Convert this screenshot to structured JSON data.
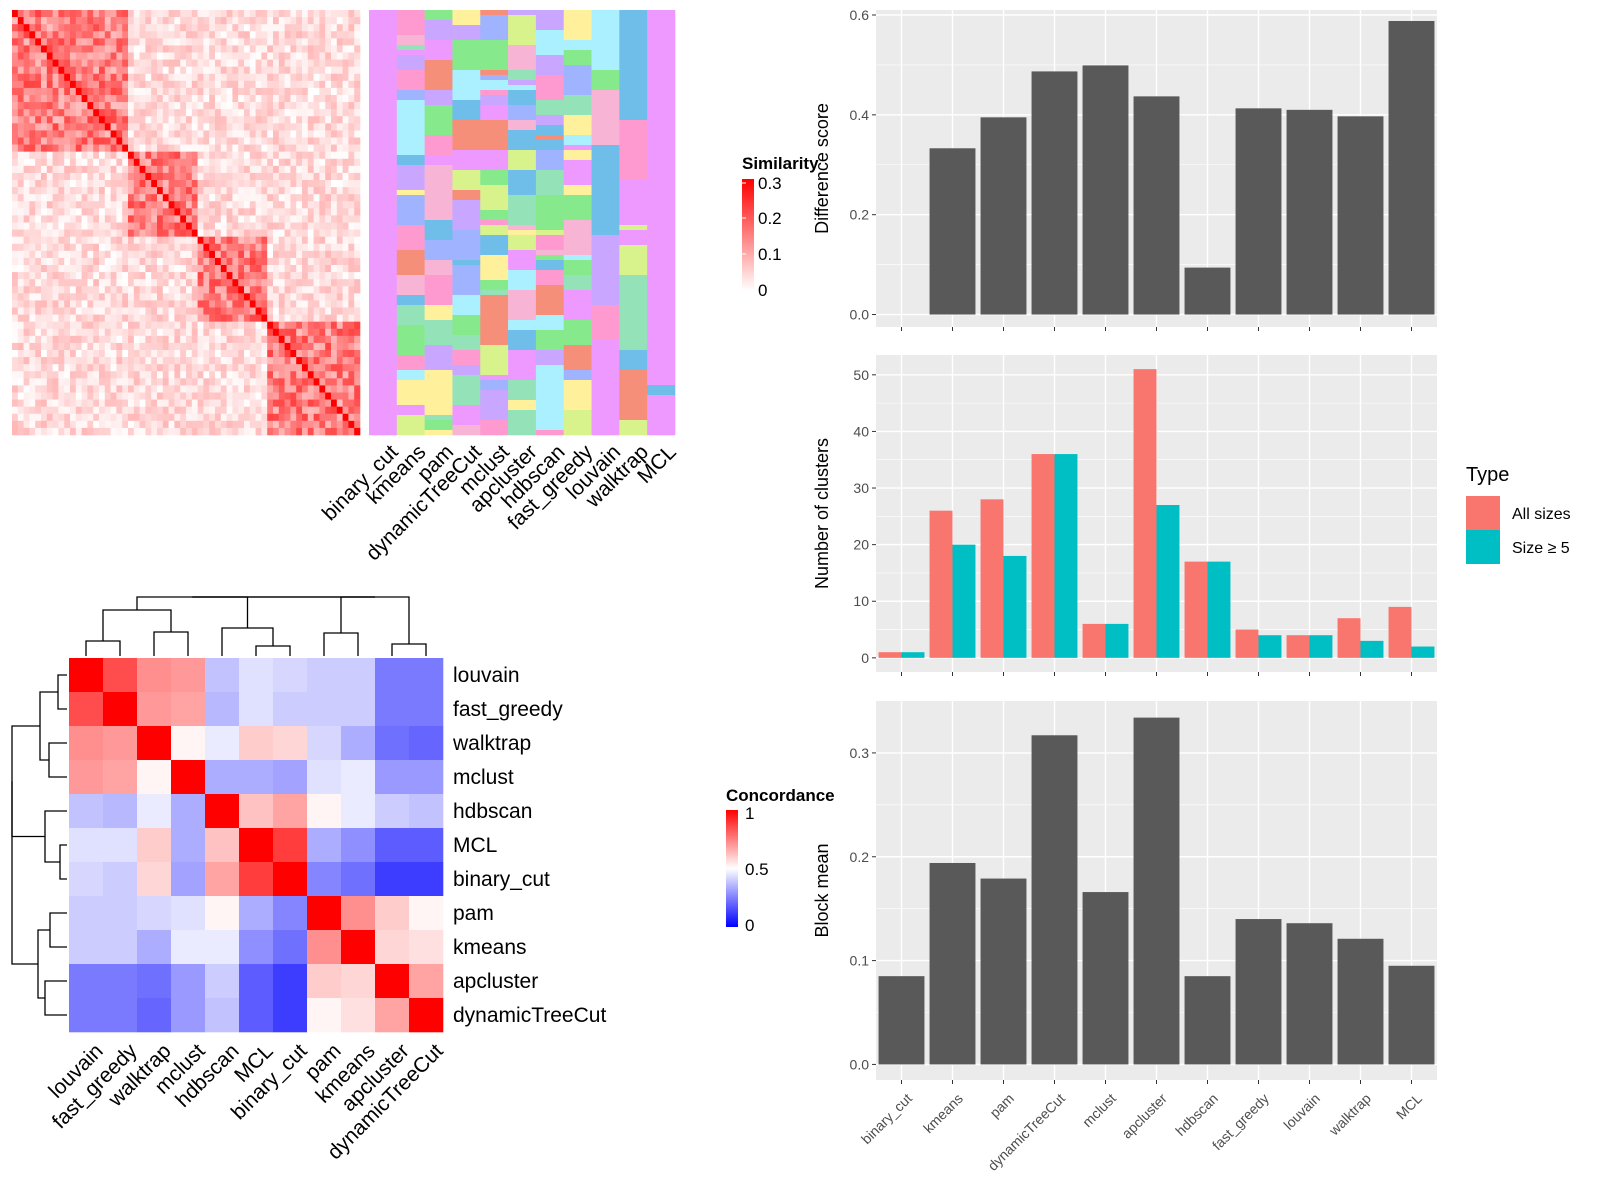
{
  "colors": {
    "bar_dark": "#595959",
    "all_sizes": "#f8766d",
    "size_ge5": "#00bfc4",
    "heat_high": "#ff0000",
    "heat_mid": "#ffffff",
    "heat_low": "#0000ff"
  },
  "methods_bar_order": [
    "binary_cut",
    "kmeans",
    "pam",
    "dynamicTreeCut",
    "mclust",
    "apcluster",
    "hdbscan",
    "fast_greedy",
    "louvain",
    "walktrap",
    "MCL"
  ],
  "top_heatmap": {
    "legend_title": "Similarity",
    "legend_ticks": [
      "0.3",
      "0.2",
      "0.1",
      "0"
    ],
    "method_labels": [
      "binary_cut",
      "kmeans",
      "pam",
      "dynamicTreeCut",
      "mclust",
      "apcluster",
      "hdbscan",
      "fast_greedy",
      "louvain",
      "walktrap",
      "MCL"
    ]
  },
  "concordance": {
    "legend_title": "Concordance",
    "legend_ticks": [
      "1",
      "0.5",
      "0"
    ],
    "order": [
      "louvain",
      "fast_greedy",
      "walktrap",
      "mclust",
      "hdbscan",
      "MCL",
      "binary_cut",
      "pam",
      "kmeans",
      "apcluster",
      "dynamicTreeCut"
    ],
    "matrix": [
      [
        1.0,
        0.85,
        0.72,
        0.7,
        0.38,
        0.44,
        0.42,
        0.4,
        0.4,
        0.24,
        0.24
      ],
      [
        0.85,
        1.0,
        0.7,
        0.68,
        0.36,
        0.44,
        0.4,
        0.4,
        0.4,
        0.24,
        0.24
      ],
      [
        0.72,
        0.7,
        1.0,
        0.52,
        0.46,
        0.6,
        0.58,
        0.42,
        0.34,
        0.22,
        0.2
      ],
      [
        0.7,
        0.68,
        0.52,
        1.0,
        0.34,
        0.34,
        0.32,
        0.44,
        0.46,
        0.3,
        0.3
      ],
      [
        0.38,
        0.36,
        0.46,
        0.34,
        1.0,
        0.62,
        0.68,
        0.52,
        0.46,
        0.4,
        0.38
      ],
      [
        0.44,
        0.44,
        0.6,
        0.34,
        0.62,
        1.0,
        0.88,
        0.34,
        0.28,
        0.18,
        0.18
      ],
      [
        0.42,
        0.4,
        0.58,
        0.32,
        0.68,
        0.88,
        1.0,
        0.26,
        0.22,
        0.12,
        0.12
      ],
      [
        0.4,
        0.4,
        0.42,
        0.44,
        0.52,
        0.34,
        0.26,
        1.0,
        0.72,
        0.6,
        0.52
      ],
      [
        0.4,
        0.4,
        0.34,
        0.46,
        0.46,
        0.28,
        0.22,
        0.72,
        1.0,
        0.58,
        0.56
      ],
      [
        0.24,
        0.24,
        0.22,
        0.3,
        0.4,
        0.18,
        0.12,
        0.6,
        0.58,
        1.0,
        0.68
      ],
      [
        0.24,
        0.24,
        0.2,
        0.3,
        0.38,
        0.18,
        0.12,
        0.52,
        0.56,
        0.68,
        1.0
      ]
    ]
  },
  "chart_data": [
    {
      "type": "bar",
      "categories": [
        "binary_cut",
        "kmeans",
        "pam",
        "dynamicTreeCut",
        "mclust",
        "apcluster",
        "hdbscan",
        "fast_greedy",
        "louvain",
        "walktrap",
        "MCL"
      ],
      "values": [
        0.0,
        0.333,
        0.395,
        0.487,
        0.499,
        0.437,
        0.094,
        0.413,
        0.41,
        0.397,
        0.588
      ],
      "ylabel": "Difference score",
      "ylim": [
        -0.025,
        0.61
      ],
      "yticks": [
        0.0,
        0.2,
        0.4,
        0.6
      ],
      "ytick_labels": [
        "0.0",
        "0.2",
        "0.4",
        "0.6"
      ]
    },
    {
      "type": "bar",
      "categories": [
        "binary_cut",
        "kmeans",
        "pam",
        "dynamicTreeCut",
        "mclust",
        "apcluster",
        "hdbscan",
        "fast_greedy",
        "louvain",
        "walktrap",
        "MCL"
      ],
      "series": [
        {
          "name": "All sizes",
          "values": [
            1,
            26,
            28,
            36,
            6,
            51,
            17,
            5,
            4,
            7,
            9
          ]
        },
        {
          "name": "Size ≥ 5",
          "values": [
            1,
            20,
            18,
            36,
            6,
            27,
            17,
            4,
            4,
            3,
            2
          ]
        }
      ],
      "ylabel": "Number of clusters",
      "ylim": [
        -2.5,
        53.5
      ],
      "yticks": [
        0,
        10,
        20,
        30,
        40,
        50
      ],
      "ytick_labels": [
        "0",
        "10",
        "20",
        "30",
        "40",
        "50"
      ],
      "legend": {
        "title": "Type",
        "placement": "right"
      }
    },
    {
      "type": "bar",
      "categories": [
        "binary_cut",
        "kmeans",
        "pam",
        "dynamicTreeCut",
        "mclust",
        "apcluster",
        "hdbscan",
        "fast_greedy",
        "louvain",
        "walktrap",
        "MCL"
      ],
      "values": [
        0.085,
        0.194,
        0.179,
        0.317,
        0.166,
        0.334,
        0.085,
        0.14,
        0.136,
        0.121,
        0.095
      ],
      "ylabel": "Block mean",
      "ylim": [
        -0.015,
        0.35
      ],
      "yticks": [
        0.0,
        0.1,
        0.2,
        0.3
      ],
      "ytick_labels": [
        "0.0",
        "0.1",
        "0.2",
        "0.3"
      ]
    }
  ]
}
